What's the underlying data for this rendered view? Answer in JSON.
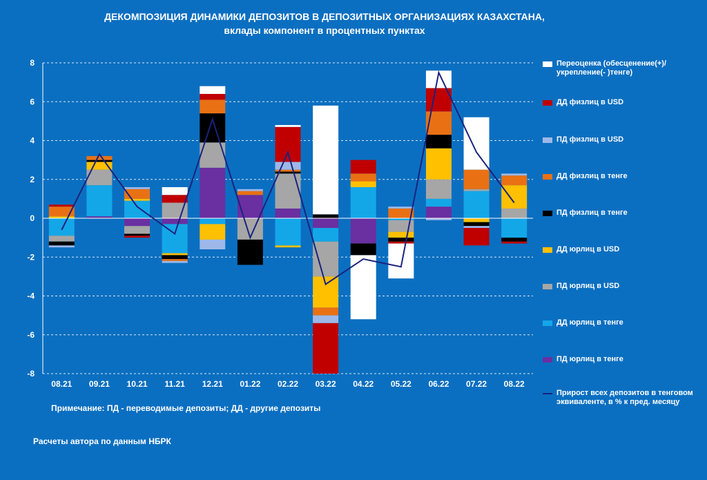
{
  "title_line1": "ДЕКОМПОЗИЦИЯ ДИНАМИКИ ДЕПОЗИТОВ В ДЕПОЗИТНЫХ ОРГАНИЗАЦИЯХ КАЗАХСТАНА,",
  "title_line2": "вклады компонент в процентных пунктах",
  "note": "Примечание: ПД - переводимые депозиты; ДД - другие депозиты",
  "source": "Расчеты автора по данным НБРК",
  "chart_data": {
    "type": "bar",
    "stacked": true,
    "categories": [
      "08.21",
      "09.21",
      "10.21",
      "11.21",
      "12.21",
      "01.22",
      "02.22",
      "03.22",
      "04.22",
      "05.22",
      "06.22",
      "07.22",
      "08.22"
    ],
    "ylim": [
      -8,
      8
    ],
    "yticks": [
      -8,
      -6,
      -4,
      -2,
      0,
      2,
      4,
      6,
      8
    ],
    "grid": true,
    "legend": "right",
    "series": [
      {
        "name": "ПД юрлиц в тенге",
        "color": "#6a2fa0",
        "values": [
          0.0,
          0.1,
          -0.4,
          -0.3,
          2.6,
          1.2,
          0.5,
          -0.5,
          -1.3,
          0.0,
          0.6,
          0.0,
          0.0
        ]
      },
      {
        "name": "ДД юрлиц в тенге",
        "color": "#14a7e8",
        "values": [
          -0.9,
          1.6,
          0.9,
          -1.5,
          -0.3,
          0.0,
          -1.4,
          -0.7,
          1.6,
          -0.1,
          0.4,
          1.4,
          -1.0
        ]
      },
      {
        "name": "ПД юрлиц в USD",
        "color": "#a6a6a6",
        "values": [
          -0.3,
          0.8,
          -0.4,
          0.8,
          1.3,
          -1.1,
          1.8,
          -1.8,
          0.0,
          -0.6,
          1.0,
          0.1,
          0.5
        ]
      },
      {
        "name": "ДД юрлиц в USD",
        "color": "#ffc000",
        "values": [
          0.1,
          0.4,
          0.1,
          -0.1,
          -0.8,
          0.0,
          -0.1,
          -1.6,
          0.3,
          -0.3,
          1.6,
          -0.2,
          1.2
        ]
      },
      {
        "name": "ПД физлиц в тенге",
        "color": "#000000",
        "values": [
          -0.2,
          0.1,
          -0.1,
          -0.2,
          1.5,
          -1.3,
          0.1,
          0.2,
          -0.6,
          -0.2,
          0.7,
          -0.2,
          -0.2
        ]
      },
      {
        "name": "ДД физлиц в тенге",
        "color": "#e97114",
        "values": [
          0.5,
          0.2,
          0.5,
          -0.1,
          0.7,
          0.2,
          0.1,
          -0.4,
          0.4,
          0.5,
          1.2,
          1.0,
          0.5
        ]
      },
      {
        "name": "ПД физлиц в USD",
        "color": "#9db8e8",
        "values": [
          -0.1,
          0.0,
          0.1,
          -0.1,
          -0.5,
          0.1,
          0.4,
          -0.4,
          0.0,
          0.1,
          -0.1,
          -0.1,
          0.1
        ]
      },
      {
        "name": "ДД физлиц в USD",
        "color": "#c00000",
        "values": [
          0.1,
          0.0,
          -0.1,
          0.4,
          0.3,
          0.0,
          1.8,
          -2.6,
          0.7,
          -0.1,
          1.2,
          -0.9,
          -0.1
        ]
      },
      {
        "name": "Переоценка (обесценение(+)/укрепление(-)тенге)",
        "color": "#ffffff",
        "values": [
          0.0,
          0.0,
          0.0,
          0.4,
          0.4,
          0.0,
          0.1,
          5.6,
          -3.3,
          -1.8,
          0.9,
          2.7,
          0.0
        ]
      }
    ],
    "line_series": {
      "name": "Прирост всех депозитов в тенговом эквиваленте, в % к пред. месяцу",
      "color": "#1a237e",
      "values": [
        -0.6,
        3.3,
        0.6,
        -0.8,
        5.1,
        -1.0,
        3.4,
        -3.4,
        -2.1,
        -2.5,
        7.5,
        3.4,
        0.8
      ]
    },
    "legend_order": [
      "Переоценка (обесценение(+)/укрепление(-)тенге)",
      "ДД физлиц в USD",
      "ПД физлиц в USD",
      "ДД физлиц в тенге",
      "ПД физлиц в тенге",
      "ДД юрлиц в USD",
      "ПД юрлиц в USD",
      "ДД юрлиц в тенге",
      "ПД юрлиц в тенге",
      "Прирост всех депозитов в тенговом эквиваленте, в % к пред. месяцу"
    ],
    "legend_labels": {
      "Переоценка (обесценение(+)/укрепление(-)тенге)": "Переоценка (обесценение(+)/укрепление(- )тенге)",
      "Прирост всех депозитов в тенговом эквиваленте, в % к пред. месяцу": "Прирост всех депозитов в тенговом эквиваленте, в % к пред. месяцу"
    }
  }
}
